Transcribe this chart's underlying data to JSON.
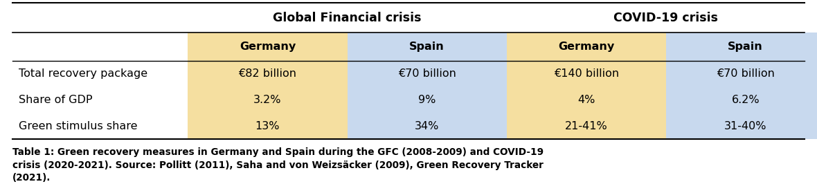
{
  "col_headers_top": [
    "Global Financial crisis",
    "COVID-19 crisis"
  ],
  "col_headers_sub": [
    "Germany",
    "Spain",
    "Germany",
    "Spain"
  ],
  "row_labels": [
    "Total recovery package",
    "Share of GDP",
    "Green stimulus share"
  ],
  "table_data": [
    [
      "€82 billion",
      "€70 billion",
      "€140 billion",
      "€70 billion"
    ],
    [
      "3.2%",
      "9%",
      "4%",
      "6.2%"
    ],
    [
      "13%",
      "34%",
      "21-41%",
      "31-40%"
    ]
  ],
  "col_colors": [
    "#F5DFA0",
    "#C8D9EE",
    "#F5DFA0",
    "#C8D9EE"
  ],
  "caption_bold": "Table 1: Green recovery measures in Germany and Spain during the GFC (2008-2009) and COVID-19\ncrisis (2020-2021). Source: Pollitt (2011), Saha and von Weizsäcker (2009), Green Recovery Tracker\n(2021).",
  "background_color": "#FFFFFF",
  "figsize": [
    11.8,
    2.79
  ],
  "dpi": 100
}
